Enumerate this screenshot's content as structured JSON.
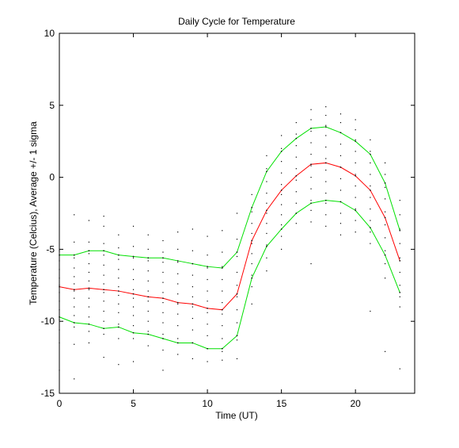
{
  "chart_data": {
    "type": "line",
    "title": "Daily Cycle for Temperature",
    "xlabel": "Time (UT)",
    "ylabel": "Temperature (Celcius), Average +/- 1 sigma",
    "xlim": [
      0,
      24
    ],
    "ylim": [
      -15,
      10
    ],
    "xticks": [
      0,
      5,
      10,
      15,
      20
    ],
    "yticks": [
      -15,
      -10,
      -5,
      0,
      5,
      10
    ],
    "grid": false,
    "x": [
      0,
      1,
      2,
      3,
      4,
      5,
      6,
      7,
      8,
      9,
      10,
      11,
      12,
      13,
      14,
      15,
      16,
      17,
      18,
      19,
      20,
      21,
      22,
      23
    ],
    "series": [
      {
        "role": "average",
        "color": "#ff0000",
        "values": [
          -7.6,
          -7.8,
          -7.7,
          -7.8,
          -7.9,
          -8.1,
          -8.3,
          -8.4,
          -8.7,
          -8.8,
          -9.1,
          -9.2,
          -8.1,
          -4.4,
          -2.3,
          -0.9,
          0.1,
          0.9,
          1.0,
          0.7,
          0.1,
          -0.9,
          -2.8,
          -5.8
        ]
      },
      {
        "role": "average-plus-sigma",
        "color": "#00e000",
        "values": [
          -5.4,
          -5.4,
          -5.1,
          -5.1,
          -5.4,
          -5.5,
          -5.6,
          -5.6,
          -5.8,
          -6.0,
          -6.2,
          -6.3,
          -5.2,
          -2.1,
          0.4,
          1.8,
          2.7,
          3.4,
          3.5,
          3.1,
          2.5,
          1.6,
          -0.4,
          -3.7
        ]
      },
      {
        "role": "average-minus-sigma",
        "color": "#00e000",
        "values": [
          -9.7,
          -10.1,
          -10.2,
          -10.5,
          -10.4,
          -10.8,
          -10.9,
          -11.2,
          -11.5,
          -11.5,
          -11.9,
          -11.9,
          -11.0,
          -7.0,
          -4.8,
          -3.6,
          -2.5,
          -1.8,
          -1.6,
          -1.7,
          -2.3,
          -3.5,
          -5.4,
          -8.0
        ]
      }
    ],
    "scatter": {
      "color": "#000000",
      "points": [
        [
          0,
          -5.1
        ],
        [
          0,
          -5.8
        ],
        [
          0,
          -6.4
        ],
        [
          0,
          -7.0
        ],
        [
          0,
          -7.5
        ],
        [
          0,
          -8.0
        ],
        [
          0,
          -8.6
        ],
        [
          0,
          -9.2
        ],
        [
          0,
          -9.9
        ],
        [
          0,
          -10.6
        ],
        [
          0,
          -11.5
        ],
        [
          0,
          -13.4
        ],
        [
          1,
          -4.5
        ],
        [
          1,
          -5.6
        ],
        [
          1,
          -6.3
        ],
        [
          1,
          -6.9
        ],
        [
          1,
          -7.4
        ],
        [
          1,
          -7.9
        ],
        [
          1,
          -8.4
        ],
        [
          1,
          -9.0
        ],
        [
          1,
          -9.6
        ],
        [
          1,
          -10.4
        ],
        [
          1,
          -11.6
        ],
        [
          1,
          -14.0
        ],
        [
          1,
          -2.6
        ],
        [
          2,
          -3.0
        ],
        [
          2,
          -4.5
        ],
        [
          2,
          -5.3
        ],
        [
          2,
          -6.0
        ],
        [
          2,
          -6.6
        ],
        [
          2,
          -7.2
        ],
        [
          2,
          -7.8
        ],
        [
          2,
          -8.4
        ],
        [
          2,
          -9.0
        ],
        [
          2,
          -9.7
        ],
        [
          2,
          -10.7
        ],
        [
          2,
          -11.5
        ],
        [
          3,
          -3.4
        ],
        [
          3,
          -4.6
        ],
        [
          3,
          -5.4
        ],
        [
          3,
          -6.1
        ],
        [
          3,
          -6.8
        ],
        [
          3,
          -7.4
        ],
        [
          3,
          -8.0
        ],
        [
          3,
          -8.6
        ],
        [
          3,
          -9.3
        ],
        [
          3,
          -10.0
        ],
        [
          3,
          -10.9
        ],
        [
          3,
          -12.5
        ],
        [
          3,
          -2.7
        ],
        [
          4,
          -4.0
        ],
        [
          4,
          -4.9
        ],
        [
          4,
          -5.7
        ],
        [
          4,
          -6.4
        ],
        [
          4,
          -7.0
        ],
        [
          4,
          -7.6
        ],
        [
          4,
          -8.2
        ],
        [
          4,
          -8.8
        ],
        [
          4,
          -9.4
        ],
        [
          4,
          -10.2
        ],
        [
          4,
          -11.2
        ],
        [
          4,
          -13.0
        ],
        [
          5,
          -3.4
        ],
        [
          5,
          -4.8
        ],
        [
          5,
          -5.6
        ],
        [
          5,
          -6.4
        ],
        [
          5,
          -7.1
        ],
        [
          5,
          -7.8
        ],
        [
          5,
          -8.4
        ],
        [
          5,
          -9.0
        ],
        [
          5,
          -9.6
        ],
        [
          5,
          -10.3
        ],
        [
          5,
          -11.2
        ],
        [
          5,
          -12.8
        ],
        [
          6,
          -4.0
        ],
        [
          6,
          -5.0
        ],
        [
          6,
          -5.8
        ],
        [
          6,
          -6.5
        ],
        [
          6,
          -7.2
        ],
        [
          6,
          -7.9
        ],
        [
          6,
          -8.6
        ],
        [
          6,
          -9.3
        ],
        [
          6,
          -10.0
        ],
        [
          6,
          -10.7
        ],
        [
          6,
          -11.7
        ],
        [
          7,
          -4.4
        ],
        [
          7,
          -5.2
        ],
        [
          7,
          -5.9
        ],
        [
          7,
          -6.6
        ],
        [
          7,
          -7.3
        ],
        [
          7,
          -8.0
        ],
        [
          7,
          -8.7
        ],
        [
          7,
          -9.4
        ],
        [
          7,
          -10.1
        ],
        [
          7,
          -10.9
        ],
        [
          7,
          -12.0
        ],
        [
          7,
          -13.4
        ],
        [
          8,
          -3.8
        ],
        [
          8,
          -5.0
        ],
        [
          8,
          -5.9
        ],
        [
          8,
          -6.7
        ],
        [
          8,
          -7.4
        ],
        [
          8,
          -8.1
        ],
        [
          8,
          -8.8
        ],
        [
          8,
          -9.5
        ],
        [
          8,
          -10.3
        ],
        [
          8,
          -11.2
        ],
        [
          8,
          -12.3
        ],
        [
          9,
          -3.6
        ],
        [
          9,
          -5.1
        ],
        [
          9,
          -6.0
        ],
        [
          9,
          -6.8
        ],
        [
          9,
          -7.6
        ],
        [
          9,
          -8.3
        ],
        [
          9,
          -9.0
        ],
        [
          9,
          -9.8
        ],
        [
          9,
          -10.6
        ],
        [
          9,
          -11.5
        ],
        [
          9,
          -12.6
        ],
        [
          10,
          -4.1
        ],
        [
          10,
          -5.4
        ],
        [
          10,
          -6.3
        ],
        [
          10,
          -7.1
        ],
        [
          10,
          -7.9
        ],
        [
          10,
          -8.6
        ],
        [
          10,
          -9.4
        ],
        [
          10,
          -10.2
        ],
        [
          10,
          -11.0
        ],
        [
          10,
          -11.9
        ],
        [
          10,
          -12.8
        ],
        [
          11,
          -3.7
        ],
        [
          11,
          -5.2
        ],
        [
          11,
          -6.2
        ],
        [
          11,
          -7.1
        ],
        [
          11,
          -7.9
        ],
        [
          11,
          -8.7
        ],
        [
          11,
          -9.5
        ],
        [
          11,
          -10.3
        ],
        [
          11,
          -11.2
        ],
        [
          11,
          -12.1
        ],
        [
          11,
          -12.7
        ],
        [
          12,
          -2.5
        ],
        [
          12,
          -4.3
        ],
        [
          12,
          -5.5
        ],
        [
          12,
          -6.6
        ],
        [
          12,
          -7.5
        ],
        [
          12,
          -8.3
        ],
        [
          12,
          -9.2
        ],
        [
          12,
          -10.1
        ],
        [
          12,
          -11.3
        ],
        [
          12,
          -12.6
        ],
        [
          13,
          -1.2
        ],
        [
          13,
          -2.4
        ],
        [
          13,
          -3.2
        ],
        [
          13,
          -3.9
        ],
        [
          13,
          -4.6
        ],
        [
          13,
          -5.3
        ],
        [
          13,
          -6.0
        ],
        [
          13,
          -6.8
        ],
        [
          13,
          -7.6
        ],
        [
          13,
          -8.8
        ],
        [
          14,
          1.5
        ],
        [
          14,
          0.6
        ],
        [
          14,
          -0.3
        ],
        [
          14,
          -1.1
        ],
        [
          14,
          -1.8
        ],
        [
          14,
          -2.5
        ],
        [
          14,
          -3.2
        ],
        [
          14,
          -3.9
        ],
        [
          14,
          -4.7
        ],
        [
          14,
          -5.6
        ],
        [
          14,
          -6.5
        ],
        [
          15,
          2.9
        ],
        [
          15,
          2.0
        ],
        [
          15,
          1.1
        ],
        [
          15,
          0.3
        ],
        [
          15,
          -0.5
        ],
        [
          15,
          -1.2
        ],
        [
          15,
          -1.9
        ],
        [
          15,
          -2.6
        ],
        [
          15,
          -3.3
        ],
        [
          15,
          -4.1
        ],
        [
          15,
          -5.0
        ],
        [
          16,
          3.8
        ],
        [
          16,
          3.0
        ],
        [
          16,
          2.2
        ],
        [
          16,
          1.4
        ],
        [
          16,
          0.6
        ],
        [
          16,
          -0.2
        ],
        [
          16,
          -1.0
        ],
        [
          16,
          -1.8
        ],
        [
          16,
          -2.5
        ],
        [
          16,
          -3.2
        ],
        [
          17,
          4.7
        ],
        [
          17,
          4.0
        ],
        [
          17,
          3.2
        ],
        [
          17,
          2.4
        ],
        [
          17,
          1.6
        ],
        [
          17,
          0.8
        ],
        [
          17,
          0.0
        ],
        [
          17,
          -0.8
        ],
        [
          17,
          -1.6
        ],
        [
          17,
          -2.3
        ],
        [
          17,
          -3.1
        ],
        [
          17,
          -6.0
        ],
        [
          18,
          4.9
        ],
        [
          18,
          4.3
        ],
        [
          18,
          3.6
        ],
        [
          18,
          2.9
        ],
        [
          18,
          2.1
        ],
        [
          18,
          1.3
        ],
        [
          18,
          0.5
        ],
        [
          18,
          -0.3
        ],
        [
          18,
          -1.1
        ],
        [
          18,
          -1.8
        ],
        [
          18,
          -2.6
        ],
        [
          18,
          -3.4
        ],
        [
          19,
          4.4
        ],
        [
          19,
          3.8
        ],
        [
          19,
          3.1
        ],
        [
          19,
          2.3
        ],
        [
          19,
          1.5
        ],
        [
          19,
          0.7
        ],
        [
          19,
          -0.1
        ],
        [
          19,
          -0.9
        ],
        [
          19,
          -1.7
        ],
        [
          19,
          -2.5
        ],
        [
          19,
          -3.2
        ],
        [
          19,
          -4.0
        ],
        [
          20,
          4.0
        ],
        [
          20,
          3.3
        ],
        [
          20,
          2.6
        ],
        [
          20,
          1.8
        ],
        [
          20,
          1.0
        ],
        [
          20,
          0.2
        ],
        [
          20,
          -0.6
        ],
        [
          20,
          -1.4
        ],
        [
          20,
          -2.2
        ],
        [
          20,
          -3.0
        ],
        [
          20,
          -3.8
        ],
        [
          21,
          2.6
        ],
        [
          21,
          1.8
        ],
        [
          21,
          1.0
        ],
        [
          21,
          0.2
        ],
        [
          21,
          -0.6
        ],
        [
          21,
          -1.4
        ],
        [
          21,
          -2.2
        ],
        [
          21,
          -3.0
        ],
        [
          21,
          -3.8
        ],
        [
          21,
          -4.6
        ],
        [
          21,
          -9.3
        ],
        [
          22,
          1.0
        ],
        [
          22,
          0.2
        ],
        [
          22,
          -0.7
        ],
        [
          22,
          -1.5
        ],
        [
          22,
          -2.4
        ],
        [
          22,
          -3.3
        ],
        [
          22,
          -4.2
        ],
        [
          22,
          -5.1
        ],
        [
          22,
          -6.0
        ],
        [
          22,
          -7.0
        ],
        [
          22,
          -12.1
        ],
        [
          23,
          -1.6
        ],
        [
          23,
          -2.6
        ],
        [
          23,
          -3.6
        ],
        [
          23,
          -4.6
        ],
        [
          23,
          -5.6
        ],
        [
          23,
          -6.6
        ],
        [
          23,
          -7.5
        ],
        [
          23,
          -8.3
        ],
        [
          23,
          -9.0
        ],
        [
          23,
          -13.3
        ]
      ]
    }
  }
}
